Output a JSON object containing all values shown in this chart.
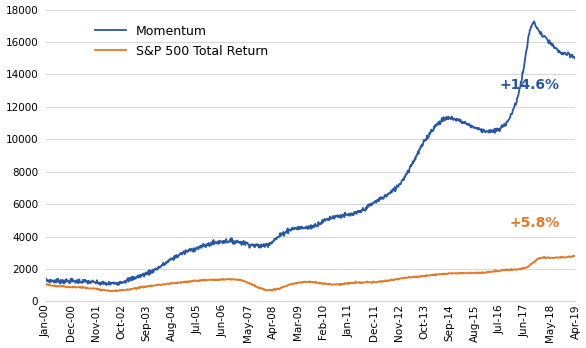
{
  "x_labels": [
    "Jan-00",
    "Dec-00",
    "Nov-01",
    "Oct-02",
    "Sep-03",
    "Aug-04",
    "Jul-05",
    "Jun-06",
    "May-07",
    "Apr-08",
    "Mar-09",
    "Feb-10",
    "Jan-11",
    "Dec-11",
    "Nov-12",
    "Oct-13",
    "Sep-14",
    "Aug-15",
    "Jul-16",
    "Jun-17",
    "May-18",
    "Apr-19"
  ],
  "momentum_key_points": [
    [
      0,
      1300
    ],
    [
      12,
      1250
    ],
    [
      24,
      1200
    ],
    [
      36,
      1100
    ],
    [
      48,
      1450
    ],
    [
      60,
      2000
    ],
    [
      72,
      2850
    ],
    [
      84,
      3350
    ],
    [
      96,
      3700
    ],
    [
      108,
      3600
    ],
    [
      120,
      3500
    ],
    [
      132,
      4400
    ],
    [
      144,
      4600
    ],
    [
      156,
      5200
    ],
    [
      168,
      5400
    ],
    [
      180,
      6200
    ],
    [
      192,
      7200
    ],
    [
      204,
      9500
    ],
    [
      216,
      11200
    ],
    [
      228,
      11000
    ],
    [
      240,
      10500
    ],
    [
      252,
      11300
    ],
    [
      260,
      14500
    ],
    [
      264,
      17000
    ],
    [
      268,
      16700
    ],
    [
      272,
      16200
    ],
    [
      278,
      15500
    ],
    [
      284,
      15200
    ],
    [
      288,
      15000
    ]
  ],
  "sp500_key_points": [
    [
      0,
      1050
    ],
    [
      12,
      900
    ],
    [
      24,
      820
    ],
    [
      36,
      650
    ],
    [
      48,
      800
    ],
    [
      60,
      1000
    ],
    [
      72,
      1150
    ],
    [
      84,
      1300
    ],
    [
      96,
      1350
    ],
    [
      108,
      1250
    ],
    [
      120,
      700
    ],
    [
      132,
      1000
    ],
    [
      144,
      1200
    ],
    [
      156,
      1050
    ],
    [
      168,
      1150
    ],
    [
      180,
      1200
    ],
    [
      192,
      1400
    ],
    [
      204,
      1550
    ],
    [
      216,
      1700
    ],
    [
      228,
      1750
    ],
    [
      240,
      1800
    ],
    [
      252,
      1950
    ],
    [
      264,
      2300
    ],
    [
      268,
      2650
    ],
    [
      272,
      2700
    ],
    [
      278,
      2700
    ],
    [
      284,
      2750
    ],
    [
      288,
      2800
    ]
  ],
  "momentum_color": "#2657a8",
  "sp500_color": "#e07b2a",
  "momentum_label": "Momentum",
  "sp500_label": "S&P 500 Total Return",
  "momentum_annotation": "+14.6%",
  "sp500_annotation": "+5.8%",
  "ylim": [
    0,
    18000
  ],
  "yticks": [
    0,
    2000,
    4000,
    6000,
    8000,
    10000,
    12000,
    14000,
    16000,
    18000
  ],
  "annotation_fontsize": 10,
  "legend_fontsize": 9,
  "tick_fontsize": 7.5,
  "background_color": "#ffffff",
  "grid_color": "#d0d0d0"
}
